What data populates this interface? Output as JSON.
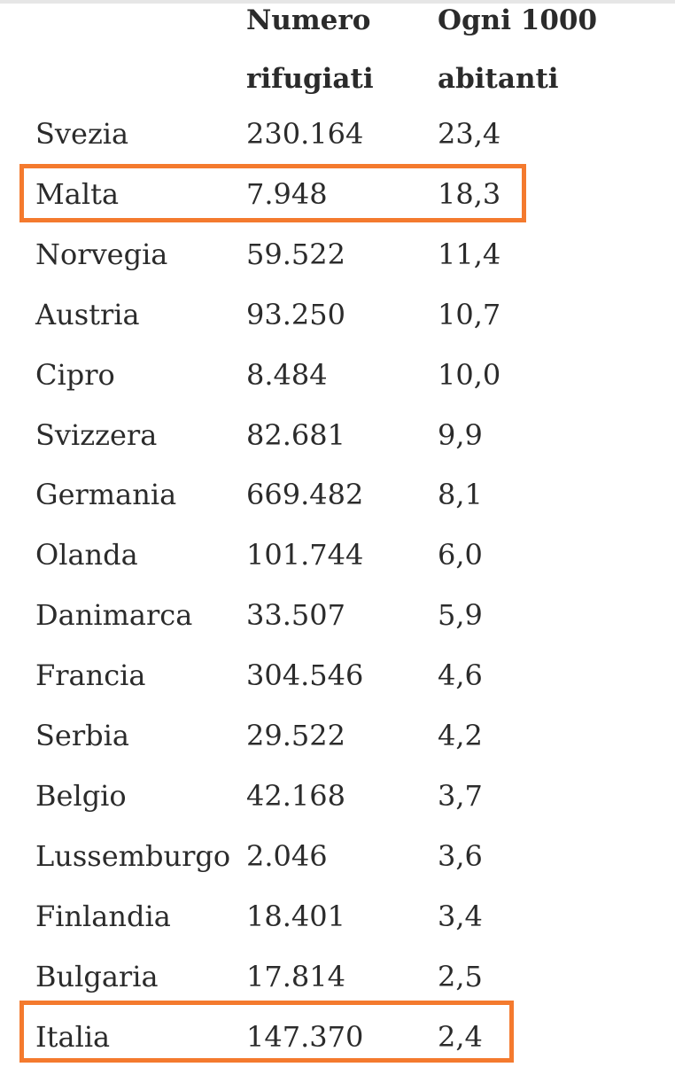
{
  "table": {
    "headers": {
      "refugees": "Numero\nrifugiati",
      "per_1000": "Ogni 1000\nabitanti"
    },
    "rows": [
      {
        "country": "Svezia",
        "refugees": "230.164",
        "per_1000": "23,4"
      },
      {
        "country": "Malta",
        "refugees": "7.948",
        "per_1000": "18,3",
        "highlighted": true
      },
      {
        "country": "Norvegia",
        "refugees": "59.522",
        "per_1000": "11,4"
      },
      {
        "country": "Austria",
        "refugees": "93.250",
        "per_1000": "10,7"
      },
      {
        "country": "Cipro",
        "refugees": "8.484",
        "per_1000": "10,0"
      },
      {
        "country": "Svizzera",
        "refugees": "82.681",
        "per_1000": "9,9"
      },
      {
        "country": "Germania",
        "refugees": "669.482",
        "per_1000": "8,1"
      },
      {
        "country": "Olanda",
        "refugees": "101.744",
        "per_1000": "6,0"
      },
      {
        "country": "Danimarca",
        "refugees": "33.507",
        "per_1000": "5,9"
      },
      {
        "country": "Francia",
        "refugees": "304.546",
        "per_1000": "4,6"
      },
      {
        "country": "Serbia",
        "refugees": "29.522",
        "per_1000": "4,2"
      },
      {
        "country": "Belgio",
        "refugees": "42.168",
        "per_1000": "3,7"
      },
      {
        "country": "Lussemburgo",
        "refugees": "2.046",
        "per_1000": "3,6"
      },
      {
        "country": "Finlandia",
        "refugees": "18.401",
        "per_1000": "3,4"
      },
      {
        "country": "Bulgaria",
        "refugees": "17.814",
        "per_1000": "2,5"
      },
      {
        "country": "Italia",
        "refugees": "147.370",
        "per_1000": "2,4",
        "highlighted": true
      }
    ]
  },
  "colors": {
    "text": "#2b2b2b",
    "highlight_border": "#f47a2e",
    "top_rule": "#e6e6e6"
  }
}
